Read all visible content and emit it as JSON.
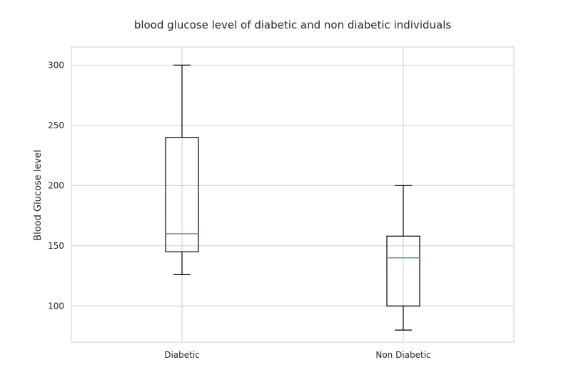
{
  "chart_data": {
    "type": "box",
    "title": "blood glucose level of diabetic and non diabetic individuals",
    "xlabel": "",
    "ylabel": "Blood Glucose level",
    "ylim": [
      70,
      315
    ],
    "yticks": [
      100,
      150,
      200,
      250,
      300
    ],
    "grid": true,
    "categories": [
      "Diabetic",
      "Non Diabetic"
    ],
    "boxes": [
      {
        "category": "Diabetic",
        "whisker_low": 126,
        "q1": 145,
        "median": 160,
        "q3": 240,
        "whisker_high": 300
      },
      {
        "category": "Non Diabetic",
        "whisker_low": 80,
        "q1": 100,
        "median": 140,
        "q3": 158,
        "whisker_high": 200
      }
    ],
    "colors": {
      "box": "#000000",
      "median": "#55a868",
      "grid": "#cccccc",
      "frame": "#cccccc"
    }
  }
}
